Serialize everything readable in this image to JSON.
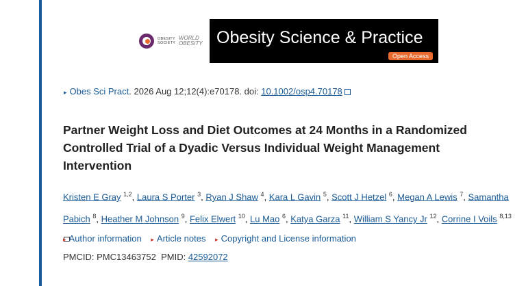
{
  "banner": {
    "obesity_society": "OBESITY SOCIETY",
    "world_obesity": "WORLD OBESITY",
    "journal_title": "Obesity Science & Practice",
    "access_badge": "Open Access"
  },
  "citation": {
    "journal_abbrev": "Obes Sci Pract",
    "details": ". 2026 Aug 12;12(4):e70178. doi: ",
    "doi": "10.1002/osp4.70178"
  },
  "article_title": "Partner Weight Loss and Diet Outcomes at 24 Months in a Randomized Controlled Trial of a Dyadic Versus Individual Weight Management Intervention",
  "authors": [
    {
      "name": "Kristen E Gray",
      "aff": "1,2"
    },
    {
      "name": "Laura S Porter",
      "aff": "3"
    },
    {
      "name": "Ryan J Shaw",
      "aff": "4"
    },
    {
      "name": "Kara L Gavin",
      "aff": "5"
    },
    {
      "name": "Scott J Hetzel",
      "aff": "6"
    },
    {
      "name": "Megan A Lewis",
      "aff": "7"
    },
    {
      "name": "Samantha Pabich",
      "aff": "8"
    },
    {
      "name": "Heather M Johnson",
      "aff": "9"
    },
    {
      "name": "Felix Elwert",
      "aff": "10"
    },
    {
      "name": "Lu Mao",
      "aff": "6"
    },
    {
      "name": "Katya Garza",
      "aff": "11"
    },
    {
      "name": "William S Yancy Jr",
      "aff": "12"
    },
    {
      "name": "Corrine I Voils",
      "aff": "8,13"
    }
  ],
  "info_links": {
    "author_info": "Author information",
    "article_notes": "Article notes",
    "copyright": "Copyright and License information"
  },
  "ids": {
    "pmcid_label": "PMCID: PMC13463752",
    "pmid_label": "PMID: ",
    "pmid": "42592072"
  },
  "colors": {
    "link": "#1a5a96",
    "rule": "#1a5a96",
    "accent": "#e86a2e"
  }
}
